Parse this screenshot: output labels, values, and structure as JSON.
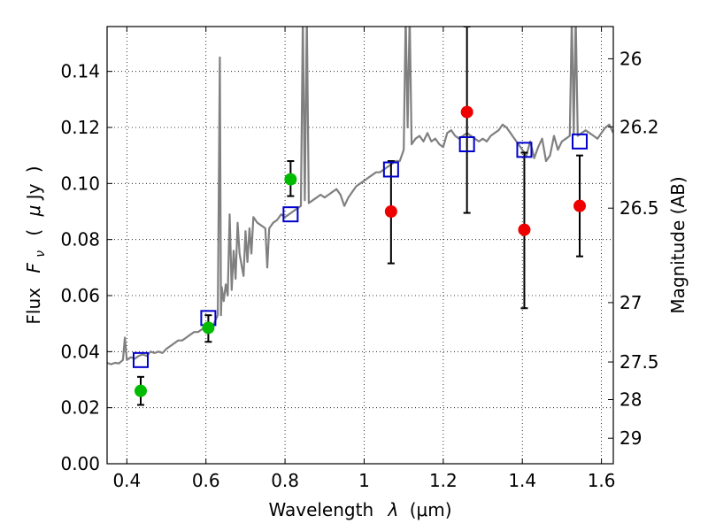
{
  "chart_data": {
    "type": "scatter",
    "xlabel_prefix": "Wavelength",
    "xlabel_symbol": "λ",
    "xlabel_unit": "(μm)",
    "ylabel_prefix": "Flux",
    "ylabel_symbol": "F",
    "ylabel_subscript": "ν",
    "ylabel_unit_open": "(",
    "ylabel_unit_mu": "μ",
    "ylabel_unit": "Jy",
    "ylabel_unit_close": ")",
    "y2label": "Magnitude (AB)",
    "xlim": [
      0.35,
      1.63
    ],
    "ylim": [
      0.0,
      0.156
    ],
    "grid": true,
    "x_ticks": [
      0.4,
      0.6,
      0.8,
      1.0,
      1.2,
      1.4,
      1.6
    ],
    "x_tick_labels": [
      "0.4",
      "0.6",
      "0.8",
      "1",
      "1.2",
      "1.4",
      "1.6"
    ],
    "y_ticks": [
      0.0,
      0.02,
      0.04,
      0.06,
      0.08,
      0.1,
      0.12,
      0.14
    ],
    "y_tick_labels": [
      "0.00",
      "0.02",
      "0.04",
      "0.06",
      "0.08",
      "0.10",
      "0.12",
      "0.14"
    ],
    "y2_ticks": [
      {
        "label": "26",
        "flux": 0.1445
      },
      {
        "label": "26.2",
        "flux": 0.1202
      },
      {
        "label": "26.5",
        "flux": 0.0912
      },
      {
        "label": "27",
        "flux": 0.0575
      },
      {
        "label": "27.5",
        "flux": 0.0363
      },
      {
        "label": "28",
        "flux": 0.0229
      },
      {
        "label": "29",
        "flux": 0.0091
      }
    ],
    "colors": {
      "model": "#808080",
      "green": "#00bb00",
      "red": "#ee0000",
      "square": "#0000cc",
      "errorbar": "#000000"
    },
    "model_spectrum": [
      [
        0.35,
        0.036
      ],
      [
        0.36,
        0.0355
      ],
      [
        0.37,
        0.036
      ],
      [
        0.38,
        0.0358
      ],
      [
        0.39,
        0.037
      ],
      [
        0.395,
        0.045
      ],
      [
        0.4,
        0.037
      ],
      [
        0.41,
        0.038
      ],
      [
        0.42,
        0.0375
      ],
      [
        0.43,
        0.0385
      ],
      [
        0.44,
        0.039
      ],
      [
        0.45,
        0.0385
      ],
      [
        0.46,
        0.04
      ],
      [
        0.47,
        0.0395
      ],
      [
        0.48,
        0.04
      ],
      [
        0.49,
        0.0395
      ],
      [
        0.5,
        0.041
      ],
      [
        0.51,
        0.042
      ],
      [
        0.52,
        0.043
      ],
      [
        0.53,
        0.044
      ],
      [
        0.54,
        0.044
      ],
      [
        0.55,
        0.045
      ],
      [
        0.56,
        0.046
      ],
      [
        0.57,
        0.047
      ],
      [
        0.58,
        0.047
      ],
      [
        0.59,
        0.048
      ],
      [
        0.6,
        0.049
      ],
      [
        0.61,
        0.049
      ],
      [
        0.62,
        0.05
      ],
      [
        0.63,
        0.053
      ],
      [
        0.635,
        0.145
      ],
      [
        0.638,
        0.053
      ],
      [
        0.64,
        0.063
      ],
      [
        0.645,
        0.058
      ],
      [
        0.65,
        0.064
      ],
      [
        0.655,
        0.06
      ],
      [
        0.66,
        0.089
      ],
      [
        0.665,
        0.062
      ],
      [
        0.67,
        0.076
      ],
      [
        0.675,
        0.066
      ],
      [
        0.68,
        0.086
      ],
      [
        0.685,
        0.075
      ],
      [
        0.69,
        0.071
      ],
      [
        0.695,
        0.067
      ],
      [
        0.7,
        0.083
      ],
      [
        0.705,
        0.072
      ],
      [
        0.71,
        0.084
      ],
      [
        0.715,
        0.075
      ],
      [
        0.72,
        0.088
      ],
      [
        0.73,
        0.086
      ],
      [
        0.74,
        0.085
      ],
      [
        0.75,
        0.084
      ],
      [
        0.755,
        0.07
      ],
      [
        0.76,
        0.084
      ],
      [
        0.77,
        0.086
      ],
      [
        0.78,
        0.087
      ],
      [
        0.79,
        0.089
      ],
      [
        0.8,
        0.088
      ],
      [
        0.81,
        0.089
      ],
      [
        0.82,
        0.09
      ],
      [
        0.83,
        0.091
      ],
      [
        0.84,
        0.092
      ],
      [
        0.845,
        0.16
      ],
      [
        0.85,
        0.094
      ],
      [
        0.855,
        0.16
      ],
      [
        0.86,
        0.093
      ],
      [
        0.87,
        0.094
      ],
      [
        0.88,
        0.095
      ],
      [
        0.89,
        0.096
      ],
      [
        0.9,
        0.095
      ],
      [
        0.91,
        0.096
      ],
      [
        0.92,
        0.097
      ],
      [
        0.93,
        0.098
      ],
      [
        0.94,
        0.096
      ],
      [
        0.95,
        0.092
      ],
      [
        0.96,
        0.095
      ],
      [
        0.97,
        0.097
      ],
      [
        0.98,
        0.099
      ],
      [
        0.99,
        0.1
      ],
      [
        1.0,
        0.101
      ],
      [
        1.01,
        0.102
      ],
      [
        1.02,
        0.103
      ],
      [
        1.03,
        0.104
      ],
      [
        1.04,
        0.104
      ],
      [
        1.05,
        0.105
      ],
      [
        1.06,
        0.106
      ],
      [
        1.07,
        0.107
      ],
      [
        1.08,
        0.108
      ],
      [
        1.09,
        0.108
      ],
      [
        1.1,
        0.112
      ],
      [
        1.105,
        0.16
      ],
      [
        1.11,
        0.12
      ],
      [
        1.115,
        0.16
      ],
      [
        1.12,
        0.114
      ],
      [
        1.13,
        0.116
      ],
      [
        1.14,
        0.117
      ],
      [
        1.15,
        0.115
      ],
      [
        1.16,
        0.118
      ],
      [
        1.17,
        0.115
      ],
      [
        1.18,
        0.116
      ],
      [
        1.19,
        0.114
      ],
      [
        1.2,
        0.113
      ],
      [
        1.21,
        0.118
      ],
      [
        1.22,
        0.119
      ],
      [
        1.23,
        0.117
      ],
      [
        1.24,
        0.116
      ],
      [
        1.25,
        0.117
      ],
      [
        1.26,
        0.118
      ],
      [
        1.27,
        0.117
      ],
      [
        1.28,
        0.116
      ],
      [
        1.29,
        0.115
      ],
      [
        1.3,
        0.116
      ],
      [
        1.31,
        0.115
      ],
      [
        1.32,
        0.117
      ],
      [
        1.33,
        0.118
      ],
      [
        1.34,
        0.119
      ],
      [
        1.35,
        0.121
      ],
      [
        1.36,
        0.12
      ],
      [
        1.37,
        0.118
      ],
      [
        1.38,
        0.116
      ],
      [
        1.39,
        0.114
      ],
      [
        1.4,
        0.112
      ],
      [
        1.41,
        0.11
      ],
      [
        1.42,
        0.115
      ],
      [
        1.43,
        0.109
      ],
      [
        1.44,
        0.113
      ],
      [
        1.45,
        0.116
      ],
      [
        1.46,
        0.108
      ],
      [
        1.47,
        0.11
      ],
      [
        1.48,
        0.117
      ],
      [
        1.49,
        0.112
      ],
      [
        1.5,
        0.115
      ],
      [
        1.51,
        0.116
      ],
      [
        1.52,
        0.117
      ],
      [
        1.525,
        0.16
      ],
      [
        1.53,
        0.118
      ],
      [
        1.535,
        0.16
      ],
      [
        1.54,
        0.117
      ],
      [
        1.55,
        0.118
      ],
      [
        1.56,
        0.119
      ],
      [
        1.57,
        0.118
      ],
      [
        1.58,
        0.117
      ],
      [
        1.59,
        0.116
      ],
      [
        1.6,
        0.118
      ],
      [
        1.61,
        0.12
      ],
      [
        1.62,
        0.121
      ],
      [
        1.63,
        0.118
      ]
    ],
    "model_photometry": [
      {
        "x": 0.435,
        "y": 0.037
      },
      {
        "x": 0.606,
        "y": 0.052
      },
      {
        "x": 0.814,
        "y": 0.089
      },
      {
        "x": 1.068,
        "y": 0.105
      },
      {
        "x": 1.26,
        "y": 0.114
      },
      {
        "x": 1.405,
        "y": 0.112
      },
      {
        "x": 1.545,
        "y": 0.115
      }
    ],
    "green_points": [
      {
        "x": 0.435,
        "y": 0.026,
        "err_low": 0.021,
        "err_high": 0.031
      },
      {
        "x": 0.606,
        "y": 0.0485,
        "err_low": 0.0435,
        "err_high": 0.053
      },
      {
        "x": 0.814,
        "y": 0.1015,
        "err_low": 0.0955,
        "err_high": 0.108
      }
    ],
    "red_points": [
      {
        "x": 1.068,
        "y": 0.09,
        "err_low": 0.0715,
        "err_high": 0.108
      },
      {
        "x": 1.26,
        "y": 0.1255,
        "err_low": 0.0895,
        "err_high": 0.156
      },
      {
        "x": 1.405,
        "y": 0.0835,
        "err_low": 0.0555,
        "err_high": 0.111
      },
      {
        "x": 1.545,
        "y": 0.092,
        "err_low": 0.074,
        "err_high": 0.11
      }
    ]
  }
}
